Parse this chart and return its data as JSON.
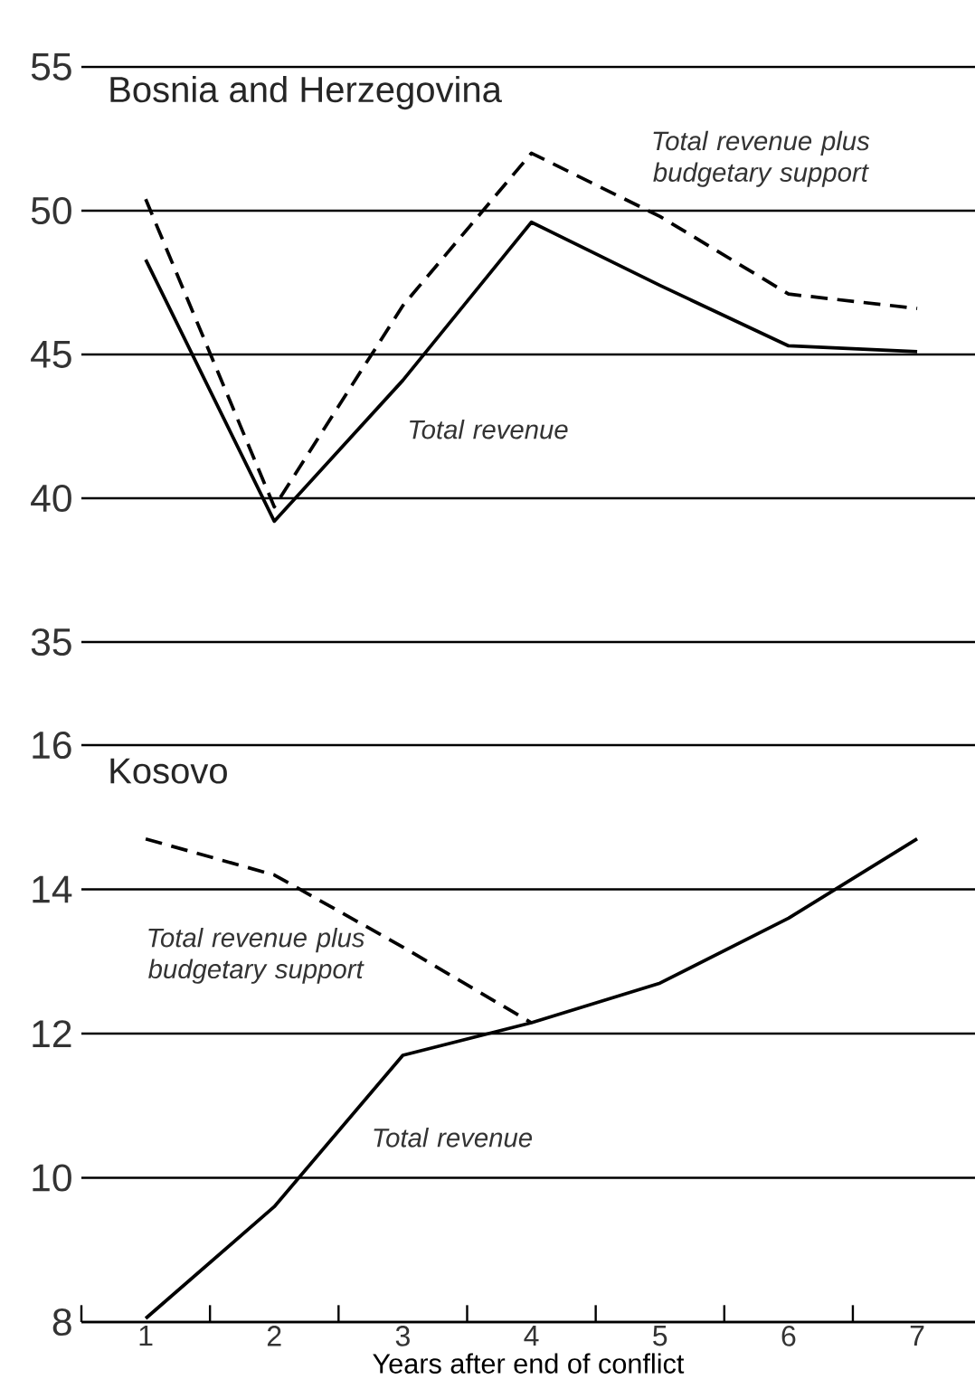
{
  "chart_data": [
    {
      "type": "line",
      "title": "Bosnia and Herzegovina",
      "x": [
        1,
        2,
        3,
        4,
        5,
        6,
        7
      ],
      "xlim": [
        0.5,
        7.45
      ],
      "xticks": [
        1,
        2,
        3,
        4,
        5,
        6,
        7
      ],
      "ylim": [
        35,
        55
      ],
      "yticks": [
        35,
        40,
        45,
        50,
        55
      ],
      "grid": "y",
      "tick_labels": "y",
      "series": [
        {
          "color": "#000000",
          "line_style": "solid",
          "values": [
            48.3,
            39.2,
            44.1,
            49.6,
            47.4,
            45.3,
            45.1
          ]
        },
        {
          "color": "#000000",
          "line_style": "dashed",
          "values": [
            50.4,
            39.7,
            46.7,
            52.0,
            49.8,
            47.1,
            46.6
          ]
        }
      ],
      "annotations": [
        "Total revenue",
        "Total revenue plus budgetary support"
      ]
    },
    {
      "type": "line",
      "title": "Kosovo",
      "xlabel": "Years after end of conflict",
      "x": [
        1,
        2,
        3,
        4,
        5,
        6,
        7
      ],
      "xlim": [
        0.5,
        7.45
      ],
      "xticks": [
        {
          "value": 0.5,
          "label": null
        },
        1,
        {
          "value": 1.5,
          "label": null
        },
        2,
        {
          "value": 2.5,
          "label": null
        },
        3,
        {
          "value": 3.5,
          "label": null
        },
        4,
        {
          "value": 4.5,
          "label": null
        },
        5,
        {
          "value": 5.5,
          "label": null
        },
        6,
        {
          "value": 6.5,
          "label": null
        },
        7
      ],
      "ylim": [
        8,
        16
      ],
      "yticks": [
        8,
        10,
        12,
        14,
        16
      ],
      "grid": "y",
      "series": [
        {
          "color": "#000000",
          "line_style": "solid",
          "values": [
            8.05,
            9.6,
            11.7,
            12.15,
            12.7,
            13.6,
            14.7
          ]
        },
        {
          "color": "#000000",
          "line_style": "dashed",
          "values": [
            14.7,
            14.2,
            13.2,
            12.15,
            null,
            null,
            null
          ]
        }
      ],
      "annotations": [
        "Total revenue plus budgetary support",
        "Total revenue"
      ]
    }
  ]
}
